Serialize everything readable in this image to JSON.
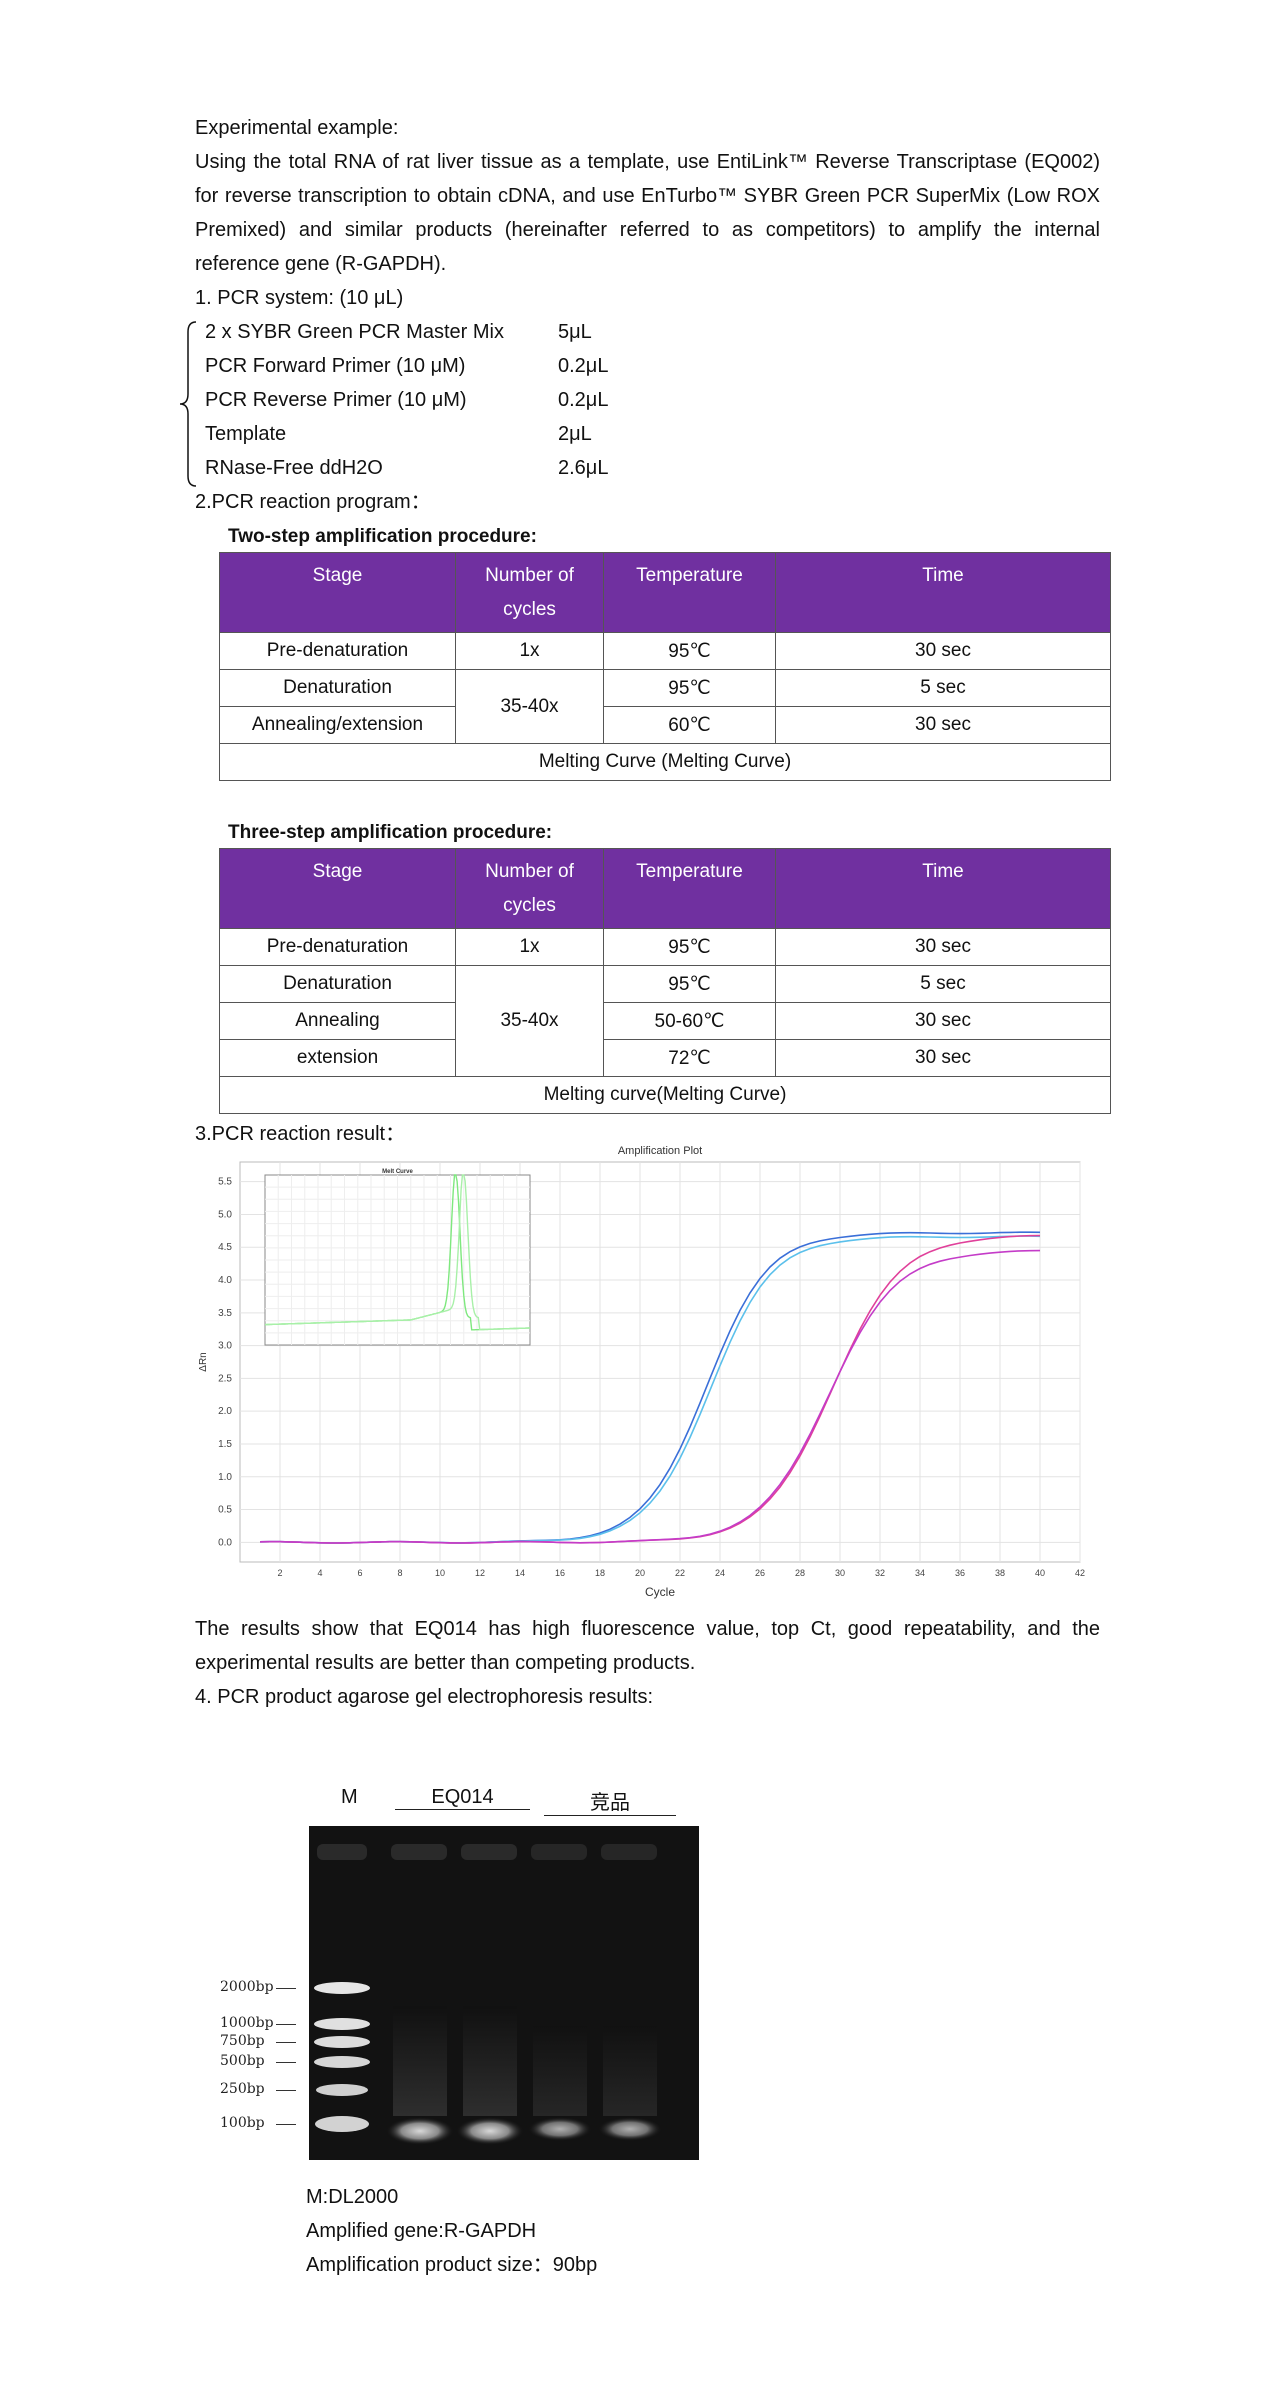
{
  "intro": {
    "heading": "Experimental example:",
    "paragraph": "Using the total RNA of rat liver tissue as a template, use EntiLink™ Reverse Transcriptase (EQ002) for reverse transcription to obtain cDNA, and use EnTurbo™ SYBR Green PCR SuperMix (Low ROX Premixed) and similar products (hereinafter referred to as competitors) to amplify the internal reference gene (R-GAPDH)."
  },
  "pcr_system": {
    "heading": "1. PCR system: (10 μL)",
    "items": [
      {
        "name": "2 x SYBR Green PCR Master Mix",
        "amount": "5μL"
      },
      {
        "name": "PCR Forward Primer (10 μM)",
        "amount": "0.2μL"
      },
      {
        "name": "PCR Reverse Primer (10 μM)",
        "amount": "0.2μL"
      },
      {
        "name": "Template",
        "amount": "2μL"
      },
      {
        "name": "RNase-Free ddH2O",
        "amount": "2.6μL"
      }
    ]
  },
  "program": {
    "heading": "2.PCR reaction program：",
    "two_step": {
      "title": "Two-step amplification procedure:",
      "headers": [
        "Stage",
        "Number of cycles",
        "Temperature",
        "Time"
      ],
      "rows": [
        {
          "stage": "Pre-denaturation",
          "cycles": "1x",
          "temp": "95℃",
          "time": "30 sec"
        },
        {
          "stage": "Denaturation",
          "cycles": "35-40x",
          "temp": "95℃",
          "time": "5 sec"
        },
        {
          "stage": "Annealing/extension",
          "temp": "60℃",
          "time": "30 sec"
        }
      ],
      "footer": "Melting Curve (Melting Curve)"
    },
    "three_step": {
      "title": "Three-step amplification procedure:",
      "headers": [
        "Stage",
        "Number of cycles",
        "Temperature",
        "Time"
      ],
      "rows": [
        {
          "stage": "Pre-denaturation",
          "cycles": "1x",
          "temp": "95℃",
          "time": "30 sec"
        },
        {
          "stage": "Denaturation",
          "cycles": "35-40x",
          "temp": "95℃",
          "time": "5 sec"
        },
        {
          "stage": "Annealing",
          "temp": "50-60℃",
          "time": "30 sec"
        },
        {
          "stage": "extension",
          "temp": "72℃",
          "time": "30 sec"
        }
      ],
      "footer": "Melting curve(Melting Curve)"
    }
  },
  "result": {
    "heading": "3.PCR reaction result：",
    "conclusion": "The results show that EQ014 has high fluorescence value, top Ct, good repeatability, and the experimental results are better than competing products."
  },
  "chart_data": {
    "type": "line",
    "title": "Amplification Plot",
    "xlabel": "Cycle",
    "ylabel": "ΔRn",
    "xlim": [
      0,
      42
    ],
    "ylim": [
      -0.3,
      5.8
    ],
    "x_ticks": [
      2,
      4,
      6,
      8,
      10,
      12,
      14,
      16,
      18,
      20,
      22,
      24,
      26,
      28,
      30,
      32,
      34,
      36,
      38,
      40,
      42
    ],
    "y_ticks": [
      0.0,
      0.5,
      1.0,
      1.5,
      2.0,
      2.5,
      3.0,
      3.5,
      4.0,
      4.5,
      5.0,
      5.5
    ],
    "grid": true,
    "series_colors": [
      "#3a6fd8",
      "#5bc0eb",
      "#e0409a",
      "#c43cc8"
    ],
    "series": [
      {
        "plateau": 4.72,
        "midpoint": 23.3,
        "slope": 1.55
      },
      {
        "plateau": 4.66,
        "midpoint": 23.5,
        "slope": 1.55
      },
      {
        "plateau": 4.68,
        "midpoint": 29.6,
        "slope": 1.7
      },
      {
        "plateau": 4.45,
        "midpoint": 29.4,
        "slope": 1.7
      }
    ],
    "inset": {
      "title": "Melt Curve",
      "colors": [
        "#7ee87e",
        "#a8f0a8"
      ]
    }
  },
  "gel": {
    "heading": "4. PCR product agarose gel electrophoresis results:",
    "lane_labels": [
      "M",
      "EQ014",
      "竞品"
    ],
    "marker_bands": [
      "2000bp",
      "1000bp",
      "750bp",
      "500bp",
      "250bp",
      "100bp"
    ],
    "captions": [
      "M:DL2000",
      "Amplified gene:R-GAPDH",
      "Amplification product size：90bp"
    ]
  }
}
